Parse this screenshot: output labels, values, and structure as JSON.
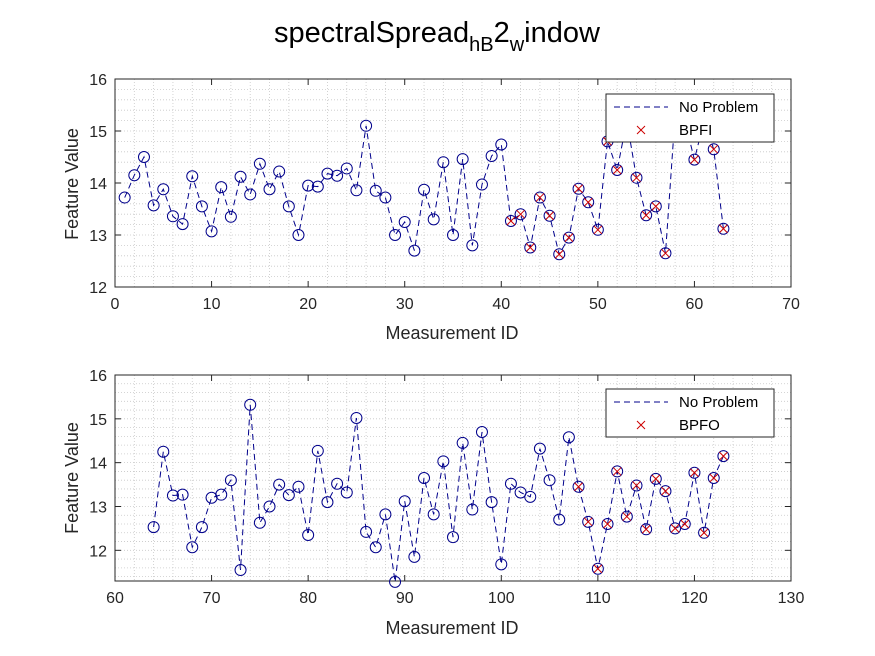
{
  "chart_title": {
    "base": "spectralSpread",
    "sub1": "hB",
    "mid": "2",
    "sub2": "w",
    "tail": "indow"
  },
  "colors": {
    "no_problem": "#00008b",
    "fault": "#cc0000",
    "axis": "#262626",
    "grid": "#c8c8c8"
  },
  "chart_data": [
    {
      "type": "line",
      "xlabel": "Measurement ID",
      "ylabel": "Feature Value",
      "xlim": [
        0,
        70
      ],
      "ylim": [
        12,
        16
      ],
      "xticks": [
        0,
        10,
        20,
        30,
        40,
        50,
        60,
        70
      ],
      "yticks": [
        12,
        13,
        14,
        15,
        16
      ],
      "grid": "minor",
      "legend_position": "top-right",
      "series": [
        {
          "name": "No Problem",
          "style": "dashed line with circle markers",
          "x": [
            1,
            2,
            3,
            4,
            5,
            6,
            7,
            8,
            9,
            10,
            11,
            12,
            13,
            14,
            15,
            16,
            17,
            18,
            19,
            20,
            21,
            22,
            23,
            24,
            25,
            26,
            27,
            28,
            29,
            30,
            31,
            32,
            33,
            34,
            35,
            36,
            37,
            38,
            39,
            40,
            41,
            42,
            43,
            44,
            45,
            46,
            47,
            48,
            49,
            50,
            51,
            52,
            53,
            54,
            55,
            56,
            57,
            58,
            59,
            60,
            61,
            62,
            63
          ],
          "y": [
            13.72,
            14.15,
            14.5,
            13.57,
            13.88,
            13.36,
            13.21,
            14.13,
            13.55,
            13.07,
            13.92,
            13.35,
            14.12,
            13.78,
            14.37,
            13.88,
            14.22,
            13.55,
            13.0,
            13.95,
            13.93,
            14.18,
            14.14,
            14.28,
            13.86,
            15.1,
            13.85,
            13.72,
            13.0,
            13.25,
            12.7,
            13.87,
            13.3,
            14.4,
            13.0,
            14.46,
            12.8,
            13.97,
            14.52,
            14.74,
            13.27,
            13.4,
            12.76,
            13.72,
            13.37,
            12.63,
            12.95,
            13.89,
            13.63,
            13.1,
            14.8,
            14.25,
            15.2,
            14.1,
            13.38,
            13.55,
            12.65,
            15.3,
            15.2,
            14.45,
            15.2,
            14.65,
            13.12
          ]
        },
        {
          "name": "BPFI",
          "style": "x markers",
          "x": [
            41,
            42,
            43,
            44,
            45,
            46,
            47,
            48,
            49,
            50,
            51,
            52,
            53,
            54,
            55,
            56,
            57,
            58,
            59,
            60,
            61,
            62,
            63
          ],
          "y": [
            13.27,
            13.4,
            12.76,
            13.72,
            13.37,
            12.63,
            12.95,
            13.89,
            13.63,
            13.1,
            14.8,
            14.25,
            15.2,
            14.1,
            13.38,
            13.55,
            12.65,
            15.3,
            15.2,
            14.45,
            15.2,
            14.65,
            13.12
          ]
        }
      ]
    },
    {
      "type": "line",
      "xlabel": "Measurement ID",
      "ylabel": "Feature Value",
      "xlim": [
        60,
        130
      ],
      "ylim": [
        11.3,
        16
      ],
      "xticks": [
        60,
        70,
        80,
        90,
        100,
        110,
        120,
        130
      ],
      "yticks": [
        12,
        13,
        14,
        15,
        16
      ],
      "grid": "minor",
      "legend_position": "top-right",
      "series": [
        {
          "name": "No Problem",
          "style": "dashed line with circle markers",
          "x": [
            64,
            65,
            66,
            67,
            68,
            69,
            70,
            71,
            72,
            73,
            74,
            75,
            76,
            77,
            78,
            79,
            80,
            81,
            82,
            83,
            84,
            85,
            86,
            87,
            88,
            89,
            90,
            91,
            92,
            93,
            94,
            95,
            96,
            97,
            98,
            99,
            100,
            101,
            102,
            103,
            104,
            105,
            106,
            107,
            108,
            109,
            110,
            111,
            112,
            113,
            114,
            115,
            116,
            117,
            118,
            119,
            120,
            121,
            122,
            123
          ],
          "y": [
            12.53,
            14.25,
            13.25,
            13.27,
            12.07,
            12.53,
            13.2,
            13.27,
            13.6,
            11.55,
            15.32,
            12.63,
            13.0,
            13.5,
            13.26,
            13.45,
            12.35,
            14.27,
            13.1,
            13.52,
            13.32,
            15.02,
            12.42,
            12.07,
            12.82,
            11.28,
            13.12,
            11.85,
            13.65,
            12.82,
            14.03,
            12.3,
            14.45,
            12.93,
            14.7,
            13.1,
            11.68,
            13.52,
            13.32,
            13.22,
            14.32,
            13.6,
            12.7,
            14.58,
            13.45,
            12.65,
            11.58,
            12.6,
            13.8,
            12.77,
            13.48,
            12.48,
            13.63,
            13.35,
            12.5,
            12.6,
            13.77,
            12.4,
            13.65,
            14.15
          ]
        },
        {
          "name": "BPFO",
          "style": "x markers",
          "x": [
            108,
            109,
            110,
            111,
            112,
            113,
            114,
            115,
            116,
            117,
            118,
            119,
            120,
            121,
            122,
            123
          ],
          "y": [
            13.45,
            12.65,
            11.58,
            12.6,
            13.8,
            12.77,
            13.48,
            12.48,
            13.63,
            13.35,
            12.5,
            12.6,
            13.77,
            12.4,
            13.65,
            14.15
          ]
        }
      ]
    }
  ]
}
